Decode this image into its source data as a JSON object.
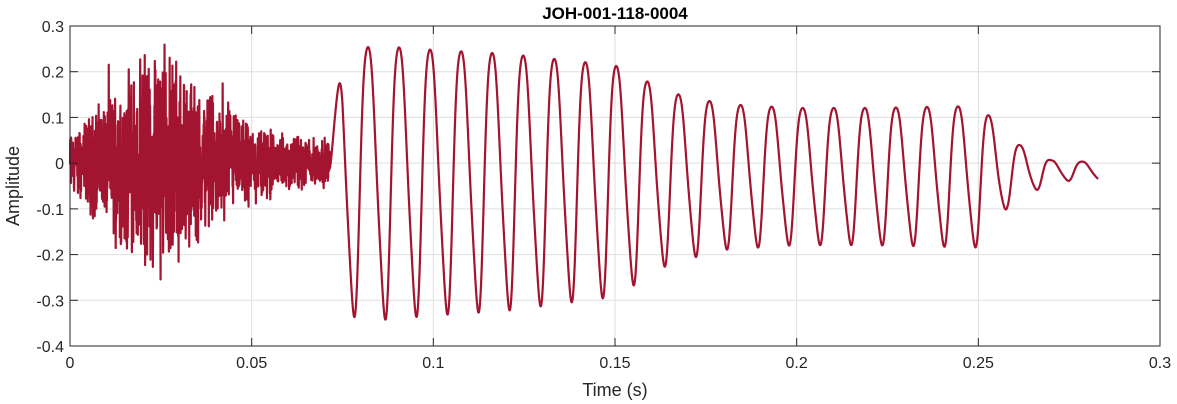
{
  "chart_data": {
    "type": "line",
    "title": "JOH-001-118-0004",
    "xlabel": "Time (s)",
    "ylabel": "Amplitude",
    "xlim": [
      0,
      0.3
    ],
    "ylim": [
      -0.4,
      0.3
    ],
    "x_ticks": [
      0,
      0.05,
      0.1,
      0.15,
      0.2,
      0.25,
      0.3
    ],
    "x_tick_labels": [
      "0",
      "0.05",
      "0.1",
      "0.15",
      "0.2",
      "0.25",
      "0.3"
    ],
    "y_ticks": [
      -0.4,
      -0.3,
      -0.2,
      -0.1,
      0,
      0.1,
      0.2,
      0.3
    ],
    "y_tick_labels": [
      "-0.4",
      "-0.3",
      "-0.2",
      "-0.1",
      "0",
      "0.1",
      "0.2",
      "0.3"
    ],
    "grid": true,
    "line_color": "#A2142F",
    "waveform": {
      "duration_s": 0.283,
      "segments": [
        {
          "kind": "noise",
          "t_start": 0.0,
          "t_end": 0.0715,
          "envelope_t": [
            0.0,
            0.01,
            0.02,
            0.025,
            0.03,
            0.04,
            0.05,
            0.06,
            0.0715
          ],
          "envelope_amp": [
            0.05,
            0.11,
            0.17,
            0.2,
            0.16,
            0.11,
            0.07,
            0.045,
            0.04
          ]
        },
        {
          "kind": "voiced",
          "t_start": 0.0715,
          "t_end": 0.283,
          "f0_hz": 117,
          "envelope_t": [
            0.0715,
            0.075,
            0.085,
            0.1,
            0.12,
            0.15,
            0.165,
            0.18,
            0.2,
            0.22,
            0.25,
            0.253,
            0.258,
            0.27,
            0.283
          ],
          "envelope_amp": [
            0.03,
            0.31,
            0.32,
            0.31,
            0.3,
            0.27,
            0.2,
            0.17,
            0.16,
            0.16,
            0.165,
            0.14,
            0.08,
            0.025,
            0.02
          ]
        }
      ]
    }
  }
}
